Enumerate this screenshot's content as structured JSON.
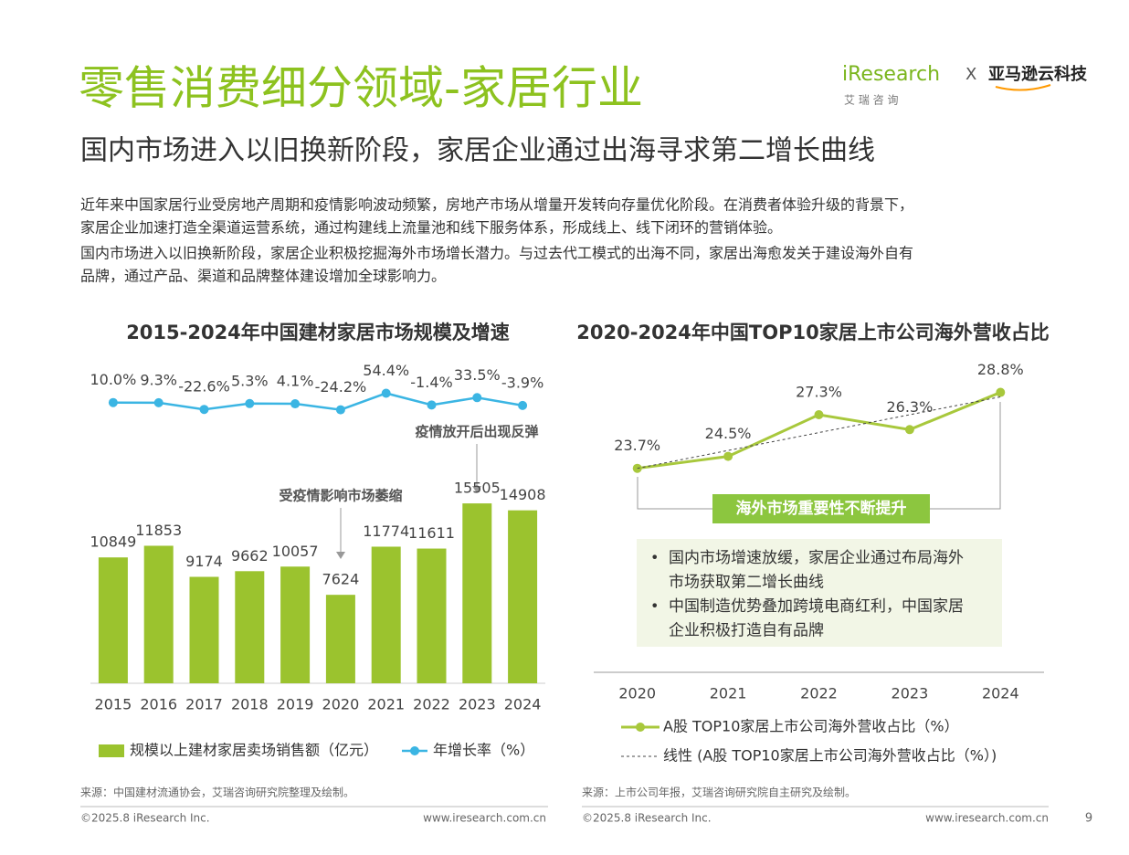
{
  "header": {
    "title": "零售消费细分领域-家居行业",
    "subtitle": "国内市场进入以旧换新阶段，家居企业通过出海寻求第二增长曲线",
    "logo": "iResearch",
    "logo_sub": "艾 瑞 咨 询",
    "logo_x": "X",
    "partner": "亚马逊云科技"
  },
  "intro": [
    "近年来中国家居行业受房地产周期和疫情影响波动频繁，房地产市场从增量开发转向存量优化阶段。在消费者体验升级的背景下，",
    "家居企业加速打造全渠道运营系统，通过构建线上流量池和线下服务体系，形成线上、线下闭环的营销体验。",
    "国内市场进入以旧换新阶段，家居企业积极挖掘海外市场增长潜力。与过去代工模式的出海不同，家居出海愈发关于建设海外自有",
    "品牌，通过产品、渠道和品牌整体建设增加全球影响力。"
  ],
  "chart_data": [
    {
      "type": "bar",
      "title": "2015-2024年中国建材家居市场规模及增速",
      "categories": [
        "2015",
        "2016",
        "2017",
        "2018",
        "2019",
        "2020",
        "2021",
        "2022",
        "2023",
        "2024"
      ],
      "ylim": [
        0,
        20000
      ],
      "y2lim": [
        -200,
        200
      ],
      "series": [
        {
          "name": "规模以上建材家居卖场销售额（亿元）",
          "color": "#9bc32e",
          "values": [
            10849,
            11853,
            9174,
            9662,
            10057,
            7624,
            11774,
            11611,
            15505,
            14908
          ]
        },
        {
          "name": "年增长率（%）",
          "type": "line",
          "axis": "y2",
          "color": "#3bb5e3",
          "values": [
            10.0,
            9.3,
            -22.6,
            5.3,
            4.1,
            -24.2,
            54.4,
            -1.4,
            33.5,
            -3.9
          ],
          "value_labels": [
            "10.0%",
            "9.3%",
            "-22.6%",
            "5.3%",
            "4.1%",
            "-24.2%",
            "54.4%",
            "-1.4%",
            "33.5%",
            "-3.9%"
          ]
        }
      ],
      "annotations": [
        "受疫情影响市场萎缩",
        "疫情放开后出现反弹"
      ],
      "source": "来源：中国建材流通协会，艾瑞咨询研究院整理及绘制。"
    },
    {
      "type": "line",
      "title": "2020-2024年中国TOP10家居上市公司海外营收占比",
      "categories": [
        "2020",
        "2021",
        "2022",
        "2023",
        "2024"
      ],
      "ylim": [
        10,
        30
      ],
      "series": [
        {
          "name": "A股 TOP10家居上市公司海外营收占比（%）",
          "color": "#a8c83c",
          "values": [
            23.7,
            24.5,
            27.3,
            26.3,
            28.8
          ],
          "value_labels": [
            "23.7%",
            "24.5%",
            "27.3%",
            "26.3%",
            "28.8%"
          ]
        },
        {
          "name": "线性 (A股 TOP10家居上市公司海外营收占比（%）)",
          "color": "#444444",
          "dashed": true,
          "values": [
            23.7,
            24.9,
            26.1,
            27.3,
            28.5
          ]
        }
      ],
      "annotations": {
        "callout": "海外市场重要性不断提升",
        "bullets": [
          [
            "国内市场增速放缓，家居企业通过布局海外",
            "市场获取第二增长曲线"
          ],
          [
            "中国制造优势叠加跨境电商红利，中国家居",
            "企业积极打造自有品牌"
          ]
        ]
      },
      "source": "来源：上市公司年报，艾瑞咨询研究院自主研究及绘制。"
    }
  ],
  "footer": {
    "copyright": "©2025.8 iResearch Inc.",
    "url": "www.iresearch.com.cn",
    "page": "9"
  }
}
